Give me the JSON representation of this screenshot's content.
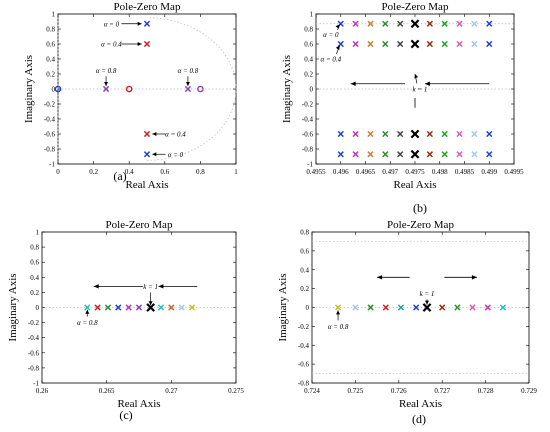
{
  "chart_data": [
    {
      "id": "a",
      "panel_label": "(a)",
      "type": "scatter",
      "title": "Pole-Zero Map",
      "xlabel": "Real Axis",
      "ylabel": "Imaginary Axis",
      "xlim": [
        0,
        1
      ],
      "ylim": [
        -1,
        1
      ],
      "xticks": [
        0,
        0.2,
        0.4,
        0.6,
        0.8,
        1
      ],
      "xtick_labels": [
        "0",
        "0.2",
        "0.4",
        "0.6",
        "0.8",
        "1"
      ],
      "yticks": [
        1,
        0.8,
        0.6,
        0.4,
        0.2,
        0,
        -0.2,
        -0.4,
        -0.6,
        -0.8,
        -1
      ],
      "ytick_labels": [
        "1",
        "0.8",
        "0.6",
        "0.4",
        "0.2",
        "0",
        "-0.2",
        "-0.4",
        "-0.6",
        "-0.8",
        "-1"
      ],
      "points": [
        {
          "x": 0.5,
          "y": 0.87,
          "marker": "x",
          "color": "#1f3fd0"
        },
        {
          "x": 0.5,
          "y": 0.6,
          "marker": "x",
          "color": "#d01f1f"
        },
        {
          "x": 0.5,
          "y": -0.6,
          "marker": "x",
          "color": "#d01f1f"
        },
        {
          "x": 0.5,
          "y": -0.87,
          "marker": "x",
          "color": "#1f3fd0"
        },
        {
          "x": 0.27,
          "y": 0,
          "marker": "x",
          "color": "#8a3fc0"
        },
        {
          "x": 0.73,
          "y": 0,
          "marker": "x",
          "color": "#8a3fc0"
        },
        {
          "x": 0.0,
          "y": 0,
          "marker": "o",
          "color": "#1f3fd0"
        },
        {
          "x": 0.4,
          "y": 0,
          "marker": "o",
          "color": "#d01f1f"
        },
        {
          "x": 0.8,
          "y": 0,
          "marker": "o",
          "color": "#8a3fc0"
        }
      ],
      "annotations": [
        {
          "text": "α = 0",
          "x": 0.3,
          "y": 0.87,
          "arrow": [
            0.47,
            0.87
          ]
        },
        {
          "text": "α = 0.4",
          "x": 0.3,
          "y": 0.6,
          "arrow": [
            0.47,
            0.6
          ]
        },
        {
          "text": "α = 0.8",
          "x": 0.27,
          "y": 0.25,
          "arrow": [
            0.27,
            0.04
          ]
        },
        {
          "text": "α = 0.8",
          "x": 0.73,
          "y": 0.25,
          "arrow": [
            0.73,
            0.04
          ]
        },
        {
          "text": "α = 0.4",
          "x": 0.66,
          "y": -0.6,
          "arrow": [
            0.53,
            -0.6
          ]
        },
        {
          "text": "α = 0",
          "x": 0.66,
          "y": -0.87,
          "arrow": [
            0.53,
            -0.87
          ]
        }
      ]
    },
    {
      "id": "b",
      "panel_label": "(b)",
      "type": "scatter",
      "title": "Pole-Zero Map",
      "xlabel": "Real Axis",
      "ylabel": "Imaginary Axis",
      "xlim": [
        0.4955,
        0.4995
      ],
      "ylim": [
        -1,
        1
      ],
      "xticks": [
        0.4955,
        0.496,
        0.4965,
        0.497,
        0.4975,
        0.498,
        0.4985,
        0.499,
        0.4995
      ],
      "xtick_labels": [
        "0.4955",
        "0.496",
        "0.4965",
        "0.497",
        "0.4975",
        "0.498",
        "0.4985",
        "0.499",
        "0.4995"
      ],
      "yticks": [
        1,
        0.8,
        0.6,
        0.4,
        0.2,
        0,
        -0.2,
        -0.4,
        -0.6,
        -0.8,
        -1
      ],
      "ytick_labels": [
        "1",
        "0.8",
        "0.6",
        "0.4",
        "0.2",
        "0",
        "-0.2",
        "-0.4",
        "-0.6",
        "-0.8",
        "-1"
      ],
      "x_values": [
        0.496,
        0.4963,
        0.4966,
        0.4969,
        0.4972,
        0.4975,
        0.4978,
        0.4981,
        0.4984,
        0.4987,
        0.499
      ],
      "colors": [
        "#1f3fd0",
        "#c030c0",
        "#c08030",
        "#2e8b2e",
        "#404040",
        "#000000",
        "#8b2e0b",
        "#20a020",
        "#d060b0",
        "#a0c8f0",
        "#1f3fd0"
      ],
      "rows_y": [
        0.87,
        0.6,
        -0.6,
        -0.87
      ],
      "dashed_y": [
        0.87
      ],
      "annotations": [
        {
          "text": "α = 0",
          "x": 0.4958,
          "y": 0.73,
          "arrow": [
            0.49598,
            0.86
          ]
        },
        {
          "text": "α = 0.4",
          "x": 0.4958,
          "y": 0.4,
          "arrow": [
            0.49598,
            0.58
          ]
        },
        {
          "text": "k = 1",
          "x": 0.4976,
          "y": 0,
          "arrow": [
            0.4975,
            0.2
          ]
        }
      ]
    },
    {
      "id": "c",
      "panel_label": "(c)",
      "type": "scatter",
      "title": "Pole-Zero Map",
      "xlabel": "Real Axis",
      "ylabel": "Imaginary Axis",
      "xlim": [
        0.26,
        0.275
      ],
      "ylim": [
        -1,
        1
      ],
      "xticks": [
        0.26,
        0.265,
        0.27,
        0.275
      ],
      "xtick_labels": [
        "0.26",
        "0.265",
        "0.27",
        "0.275"
      ],
      "yticks": [
        1,
        0.8,
        0.6,
        0.4,
        0.2,
        0,
        -0.2,
        -0.4,
        -0.6,
        -0.8,
        -1
      ],
      "ytick_labels": [
        "1",
        "0.8",
        "0.6",
        "0.4",
        "0.2",
        "0",
        "-0.2",
        "-0.4",
        "-0.6",
        "-0.8",
        "-1"
      ],
      "x_values": [
        0.2635,
        0.2643,
        0.2651,
        0.2659,
        0.2667,
        0.2675,
        0.2684,
        0.2692,
        0.27,
        0.2708,
        0.2716
      ],
      "colors": [
        "#20c0c0",
        "#d01f1f",
        "#2e8b2e",
        "#1f3fd0",
        "#c030c0",
        "#8a3fc0",
        "#000000",
        "#20c0c0",
        "#d06020",
        "#a0c8f0",
        "#c0c020"
      ],
      "rows_y": [
        0
      ],
      "annotations": [
        {
          "text": "k = 1",
          "x": 0.2684,
          "y": 0.28,
          "arrow": [
            0.2684,
            0.03
          ]
        },
        {
          "text": "α = 0.8",
          "x": 0.2635,
          "y": -0.2,
          "arrow": [
            0.2635,
            -0.03
          ]
        }
      ]
    },
    {
      "id": "d",
      "panel_label": "(d)",
      "type": "scatter",
      "title": "Pole-Zero Map",
      "xlabel": "Real Axis",
      "ylabel": "Imaginary Axis",
      "xlim": [
        0.724,
        0.729
      ],
      "ylim": [
        -0.8,
        0.8
      ],
      "xticks": [
        0.724,
        0.725,
        0.726,
        0.727,
        0.728,
        0.729
      ],
      "xtick_labels": [
        "0.724",
        "0.725",
        "0.726",
        "0.727",
        "0.728",
        "0.729"
      ],
      "yticks": [
        0.8,
        0.6,
        0.4,
        0.2,
        0,
        -0.2,
        -0.4,
        -0.6,
        -0.8
      ],
      "ytick_labels": [
        "0.8",
        "0.6",
        "0.4",
        "0.2",
        "0",
        "-0.2",
        "-0.4",
        "-0.6",
        "-0.8"
      ],
      "x_values": [
        0.7246,
        0.725,
        0.72535,
        0.7257,
        0.72605,
        0.7264,
        0.72665,
        0.727,
        0.72735,
        0.7277,
        0.72805,
        0.7284
      ],
      "colors": [
        "#c0c020",
        "#a0c8f0",
        "#2e8b2e",
        "#d01f1f",
        "#20a0a0",
        "#1f3fd0",
        "#000000",
        "#8b2e0b",
        "#20a020",
        "#d060b0",
        "#c030c0",
        "#20c0c0"
      ],
      "rows_y": [
        0
      ],
      "dashed_y": [
        0.7,
        -0.7
      ],
      "annotations": [
        {
          "text": "k = 1",
          "x": 0.72665,
          "y": 0.15,
          "arrow": [
            0.72665,
            0.03
          ]
        },
        {
          "text": "α = 0.8",
          "x": 0.7246,
          "y": -0.2,
          "arrow": [
            0.7246,
            -0.03
          ]
        }
      ]
    }
  ]
}
